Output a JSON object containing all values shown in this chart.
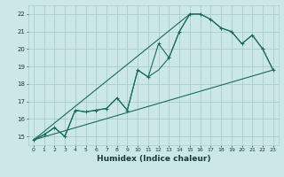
{
  "xlabel": "Humidex (Indice chaleur)",
  "bg_color": "#cce8e6",
  "grid_color": "#aacccc",
  "line_color": "#1a6b5a",
  "xlim": [
    -0.5,
    23.5
  ],
  "ylim": [
    14.5,
    22.5
  ],
  "xticks": [
    0,
    1,
    2,
    3,
    4,
    5,
    6,
    7,
    8,
    9,
    10,
    11,
    12,
    13,
    14,
    15,
    16,
    17,
    18,
    19,
    20,
    21,
    22,
    23
  ],
  "yticks": [
    15,
    16,
    17,
    18,
    19,
    20,
    21,
    22
  ],
  "line1_x": [
    0,
    1,
    2,
    3,
    4,
    5,
    6,
    7,
    8,
    9,
    10,
    11,
    12,
    13,
    14,
    15,
    16,
    17,
    18,
    19,
    20,
    21,
    22,
    23
  ],
  "line1_y": [
    14.8,
    15.1,
    15.5,
    15.0,
    16.5,
    16.4,
    16.5,
    16.6,
    17.2,
    16.5,
    18.8,
    18.4,
    20.3,
    19.5,
    21.0,
    22.0,
    22.0,
    21.7,
    21.2,
    21.0,
    20.3,
    20.8,
    20.0,
    18.8
  ],
  "line2_x": [
    0,
    1,
    2,
    3,
    4,
    5,
    6,
    7,
    8,
    9,
    10,
    11,
    12,
    13,
    14,
    15,
    16,
    17,
    18,
    19,
    20,
    21,
    22,
    23
  ],
  "line2_y": [
    14.8,
    15.1,
    15.5,
    15.0,
    16.5,
    16.4,
    16.5,
    16.6,
    17.2,
    16.5,
    18.8,
    18.4,
    18.8,
    19.5,
    21.0,
    22.0,
    22.0,
    21.7,
    21.2,
    21.0,
    20.3,
    20.8,
    20.0,
    18.8
  ],
  "line3_x": [
    0,
    23
  ],
  "line3_y": [
    14.8,
    18.8
  ],
  "line4_x": [
    0,
    15
  ],
  "line4_y": [
    14.8,
    22.0
  ]
}
